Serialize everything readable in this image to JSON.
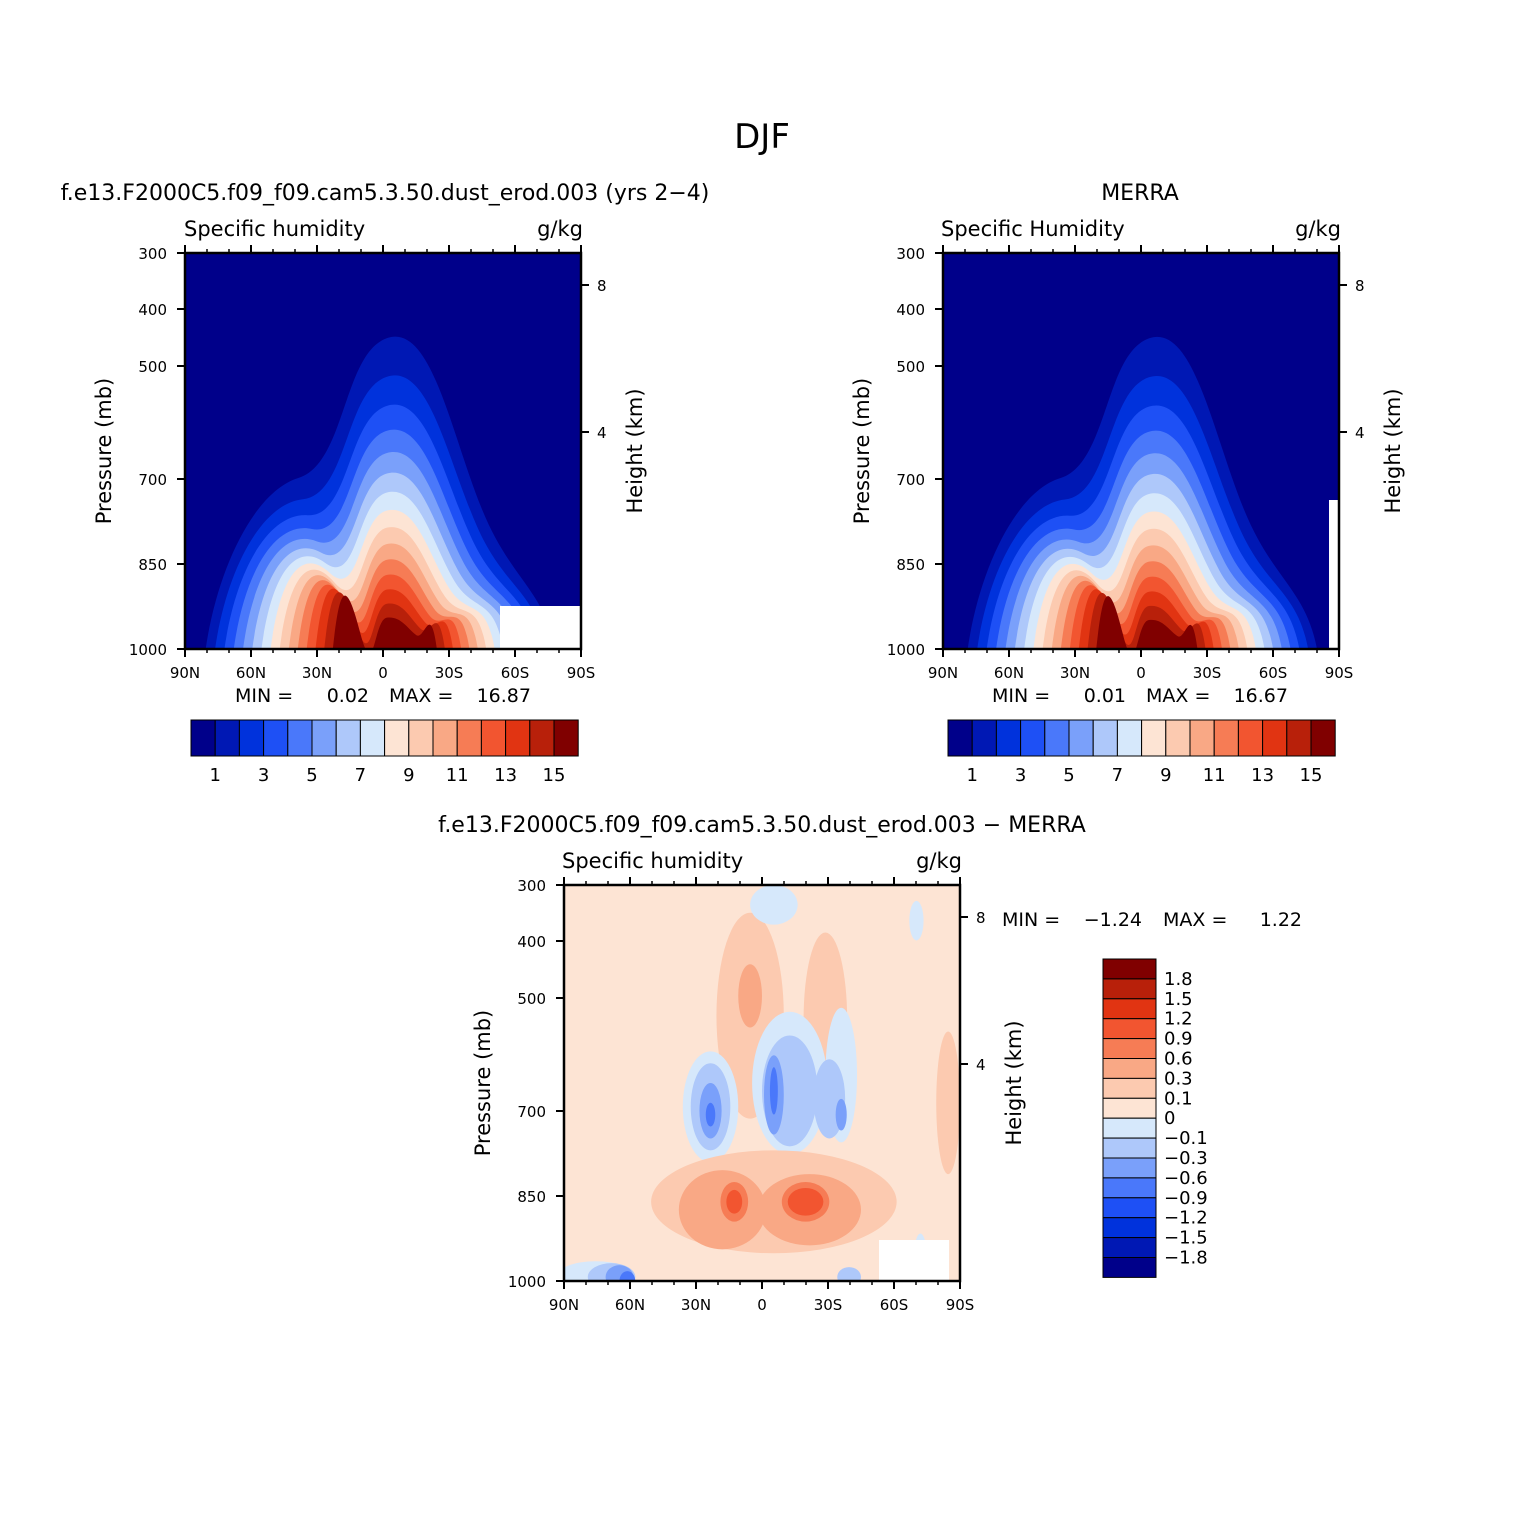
{
  "figure_title": "DJF",
  "chart_data": [
    {
      "type": "heatmap",
      "panel_title": "f.e13.F2000C5.f09_f09.cam5.3.50.dust_erod.003 (yrs 2−4)",
      "field_label": "Specific humidity",
      "units_label": "g/kg",
      "ylabel": "Pressure (mb)",
      "ylabel_right": "Height (km)",
      "x_ticks": [
        "90N",
        "60N",
        "30N",
        "0",
        "30S",
        "60S",
        "90S"
      ],
      "y_ticks": [
        "300",
        "400",
        "500",
        "700",
        "850",
        "1000"
      ],
      "y_right_ticks": [
        "8",
        "4"
      ],
      "x_range": [
        90,
        -90
      ],
      "y_range": [
        300,
        1000
      ],
      "min_label": "MIN =",
      "min_value": "0.02",
      "max_label": "MAX =",
      "max_value": "16.87",
      "peak": 16.87,
      "colorbar_labels": [
        "1",
        "3",
        "5",
        "7",
        "9",
        "11",
        "13",
        "15"
      ],
      "colorbar_levels": [
        0,
        1,
        2,
        3,
        4,
        5,
        6,
        7,
        8,
        9,
        10,
        11,
        12,
        13,
        14,
        15,
        16
      ]
    },
    {
      "type": "heatmap",
      "panel_title": "MERRA",
      "field_label": "Specific Humidity",
      "units_label": "g/kg",
      "ylabel": "Pressure (mb)",
      "ylabel_right": "Height (km)",
      "x_ticks": [
        "90N",
        "60N",
        "30N",
        "0",
        "30S",
        "60S",
        "90S"
      ],
      "y_ticks": [
        "300",
        "400",
        "500",
        "700",
        "850",
        "1000"
      ],
      "y_right_ticks": [
        "8",
        "4"
      ],
      "x_range": [
        90,
        -90
      ],
      "y_range": [
        300,
        1000
      ],
      "min_label": "MIN =",
      "min_value": "0.01",
      "max_label": "MAX =",
      "max_value": "16.67",
      "peak": 16.67,
      "colorbar_labels": [
        "1",
        "3",
        "5",
        "7",
        "9",
        "11",
        "13",
        "15"
      ],
      "colorbar_levels": [
        0,
        1,
        2,
        3,
        4,
        5,
        6,
        7,
        8,
        9,
        10,
        11,
        12,
        13,
        14,
        15,
        16
      ]
    },
    {
      "type": "heatmap",
      "panel_title": "f.e13.F2000C5.f09_f09.cam5.3.50.dust_erod.003 − MERRA",
      "field_label": "Specific humidity",
      "units_label": "g/kg",
      "ylabel": "Pressure (mb)",
      "ylabel_right": "Height (km)",
      "x_ticks": [
        "90N",
        "60N",
        "30N",
        "0",
        "30S",
        "60S",
        "90S"
      ],
      "y_ticks": [
        "300",
        "400",
        "500",
        "700",
        "850",
        "1000"
      ],
      "y_right_ticks": [
        "8",
        "4"
      ],
      "x_range": [
        90,
        -90
      ],
      "y_range": [
        300,
        1000
      ],
      "min_label": "MIN =",
      "min_value": "−1.24",
      "max_label": "MAX =",
      "max_value": "1.22",
      "colorbar_labels": [
        "1.8",
        "1.5",
        "1.2",
        "0.9",
        "0.6",
        "0.3",
        "0.1",
        "0",
        "−0.1",
        "−0.3",
        "−0.6",
        "−0.9",
        "−1.2",
        "−1.5",
        "−1.8"
      ]
    }
  ],
  "colors": {
    "seq": [
      "#00008a",
      "#0018b4",
      "#0032dc",
      "#1e50f5",
      "#4a78fa",
      "#7aa0fa",
      "#aec8fa",
      "#d6e8fb",
      "#fde4d4",
      "#fccab0",
      "#f9a885",
      "#f67c55",
      "#f25530",
      "#e13412",
      "#b8200a",
      "#800000"
    ],
    "diff": [
      "#800000",
      "#b8200a",
      "#e13412",
      "#f25530",
      "#f67c55",
      "#f9a885",
      "#fccab0",
      "#fde4d4",
      "#d6e8fb",
      "#aec8fa",
      "#7aa0fa",
      "#4a78fa",
      "#1e50f5",
      "#0032dc",
      "#0018b4",
      "#00008a"
    ]
  }
}
